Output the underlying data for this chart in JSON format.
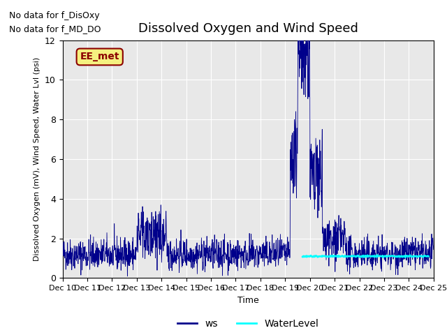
{
  "title": "Dissolved Oxygen and Wind Speed",
  "ylabel": "Dissolved Oxygen (mV), Wind Speed, Water Lvl (psi)",
  "xlabel": "Time",
  "ylim": [
    0,
    12
  ],
  "xlim": [
    0,
    15
  ],
  "background_color": "#e8e8e8",
  "text_annotations": [
    "No data for f_DisOxy",
    "No data for f_MD_DO"
  ],
  "legend_label_ws": "ws",
  "legend_label_wl": "WaterLevel",
  "ws_color": "#00008B",
  "wl_color": "cyan",
  "xtick_labels": [
    "Dec 10",
    "Dec 11",
    "Dec 12",
    "Dec 13",
    "Dec 14",
    "Dec 15",
    "Dec 16",
    "Dec 17",
    "Dec 18",
    "Dec 19",
    "Dec 20",
    "Dec 21",
    "Dec 22",
    "Dec 23",
    "Dec 24",
    "Dec 25"
  ],
  "ytick_labels": [
    "0",
    "2",
    "4",
    "6",
    "8",
    "10",
    "12"
  ],
  "seed": 42,
  "fig_bg": "#ffffff",
  "anno_text": "EE_met",
  "anno_facecolor": "#f5f080",
  "anno_edgecolor": "#8B0000",
  "anno_textcolor": "#8B0000"
}
